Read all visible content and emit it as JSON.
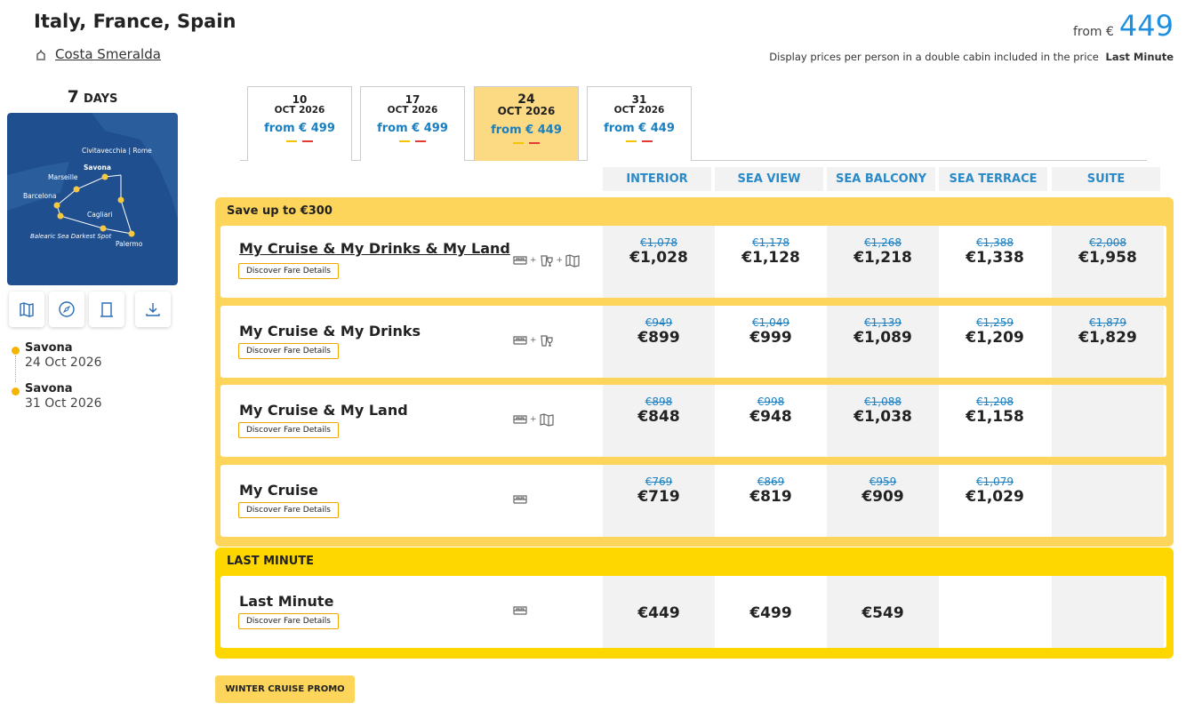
{
  "header": {
    "title": "Italy, France, Spain",
    "ship": "Costa Smeralda",
    "price_prefix": "from €",
    "price": "449",
    "note": "Display prices per person in a double cabin included in the price",
    "note_bold": "Last Minute"
  },
  "sidebar": {
    "days_number": "7",
    "days_label": "DAYS",
    "map_labels": [
      "Civitavecchia | Rome",
      "Savona",
      "Marseille",
      "Barcelona",
      "Cagliari",
      "Balearic Sea Darkest Spot",
      "Palermo"
    ],
    "itinerary": [
      {
        "port": "Savona",
        "date": "24 Oct 2026"
      },
      {
        "port": "Savona",
        "date": "31 Oct 2026"
      }
    ]
  },
  "dates": [
    {
      "day": "10",
      "month": "OCT 2026",
      "price": "from € 499"
    },
    {
      "day": "17",
      "month": "OCT 2026",
      "price": "from € 499"
    },
    {
      "day": "24",
      "month": "OCT 2026",
      "price": "from € 449",
      "selected": true
    },
    {
      "day": "31",
      "month": "OCT 2026",
      "price": "from € 449"
    }
  ],
  "cabins": [
    "INTERIOR",
    "SEA VIEW",
    "SEA BALCONY",
    "SEA TERRACE",
    "SUITE"
  ],
  "groups": [
    {
      "title": "Save up to €300",
      "fares": [
        {
          "name": "My Cruise & My Drinks & My Land",
          "button": "Discover Fare Details",
          "prices": [
            {
              "old": "€1,078",
              "new": "€1,028"
            },
            {
              "old": "€1,178",
              "new": "€1,128"
            },
            {
              "old": "€1,268",
              "new": "€1,218"
            },
            {
              "old": "€1,388",
              "new": "€1,338"
            },
            {
              "old": "€2,008",
              "new": "€1,958"
            }
          ]
        },
        {
          "name": "My Cruise & My Drinks",
          "button": "Discover Fare Details",
          "prices": [
            {
              "old": "€949",
              "new": "€899"
            },
            {
              "old": "€1,049",
              "new": "€999"
            },
            {
              "old": "€1,139",
              "new": "€1,089"
            },
            {
              "old": "€1,259",
              "new": "€1,209"
            },
            {
              "old": "€1,879",
              "new": "€1,829"
            }
          ]
        },
        {
          "name": "My Cruise & My Land",
          "button": "Discover Fare Details",
          "prices": [
            {
              "old": "€898",
              "new": "€848"
            },
            {
              "old": "€998",
              "new": "€948"
            },
            {
              "old": "€1,088",
              "new": "€1,038"
            },
            {
              "old": "€1,208",
              "new": "€1,158"
            },
            null
          ]
        },
        {
          "name": "My Cruise",
          "button": "Discover Fare Details",
          "prices": [
            {
              "old": "€769",
              "new": "€719"
            },
            {
              "old": "€869",
              "new": "€819"
            },
            {
              "old": "€959",
              "new": "€909"
            },
            {
              "old": "€1,079",
              "new": "€1,029"
            },
            null
          ]
        }
      ]
    },
    {
      "title": "LAST MINUTE",
      "fares": [
        {
          "name": "Last Minute",
          "button": "Discover Fare Details",
          "prices": [
            {
              "new": "€449"
            },
            {
              "new": "€499"
            },
            {
              "new": "€549"
            },
            null,
            null
          ]
        }
      ]
    }
  ],
  "promo": "WINTER CRUISE PROMO"
}
